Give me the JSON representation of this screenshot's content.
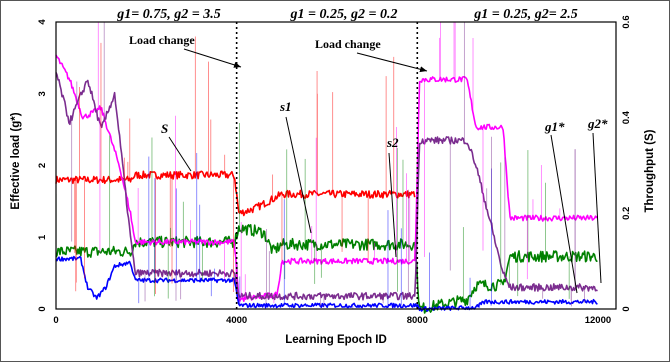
{
  "chart_data": {
    "type": "line",
    "title": "",
    "xlabel": "Learning Epoch ID",
    "ylabel_left": "Effective load (g*)",
    "ylabel_right": "Throughput (S)",
    "xlim": [
      0,
      12400
    ],
    "ylim_left": [
      0,
      4
    ],
    "ylim_right": [
      0,
      0.6
    ],
    "x_ticks": [
      "0",
      "4000",
      "8000",
      "12000"
    ],
    "y_left_ticks": [
      "0",
      "1",
      "2",
      "3",
      "4"
    ],
    "y_right_ticks": [
      "0",
      "0.2",
      "0.4",
      "0.6"
    ],
    "grid": false,
    "load_changes": [
      4000,
      8000
    ],
    "regimes": [
      {
        "label": "g1= 0.75, g2 = 3.5",
        "x": 2000
      },
      {
        "label": "g1 = 0.25, g2 = 0.2",
        "x": 6000
      },
      {
        "label": "g1 = 0.25, g2= 2.5",
        "x": 10150
      }
    ],
    "annotations": [
      {
        "text": "Load change",
        "target_x": 4000
      },
      {
        "text": "Load change",
        "target_x": 8000
      }
    ],
    "series_labels": [
      "S",
      "s1",
      "s2",
      "g1*",
      "g2*"
    ],
    "series": [
      {
        "name": "S",
        "color": "#ff0000",
        "axis": "right",
        "noise": 0.008,
        "points": [
          [
            0,
            0.27
          ],
          [
            1650,
            0.27
          ],
          [
            1750,
            0.28
          ],
          [
            3950,
            0.28
          ],
          [
            4050,
            0.2
          ],
          [
            4400,
            0.21
          ],
          [
            4600,
            0.22
          ],
          [
            5000,
            0.24
          ],
          [
            7950,
            0.24
          ]
        ]
      },
      {
        "name": "s1",
        "color": "#008000",
        "axis": "right",
        "noise": 0.012,
        "points": [
          [
            0,
            0.12
          ],
          [
            1650,
            0.12
          ],
          [
            1750,
            0.14
          ],
          [
            3950,
            0.14
          ],
          [
            4050,
            0.17
          ],
          [
            4600,
            0.16
          ],
          [
            4800,
            0.12
          ],
          [
            5000,
            0.135
          ],
          [
            7950,
            0.135
          ],
          [
            8050,
            0.0
          ],
          [
            9100,
            0.02
          ],
          [
            9300,
            0.05
          ],
          [
            9900,
            0.05
          ],
          [
            10050,
            0.11
          ],
          [
            12000,
            0.11
          ]
        ]
      },
      {
        "name": "s2",
        "color": "#ff00ff",
        "axis": "right",
        "noise": 0.006,
        "points": [
          [
            0,
            0.53
          ],
          [
            300,
            0.48
          ],
          [
            600,
            0.4
          ],
          [
            1000,
            0.42
          ],
          [
            1400,
            0.3
          ],
          [
            1650,
            0.2
          ],
          [
            1750,
            0.14
          ],
          [
            3950,
            0.14
          ],
          [
            4050,
            0.02
          ],
          [
            4900,
            0.03
          ],
          [
            5000,
            0.1
          ],
          [
            7950,
            0.1
          ],
          [
            8050,
            0.48
          ],
          [
            9100,
            0.48
          ],
          [
            9300,
            0.38
          ],
          [
            9900,
            0.38
          ],
          [
            10050,
            0.19
          ],
          [
            12000,
            0.19
          ]
        ]
      },
      {
        "name": "g1*",
        "color": "#0000ff",
        "axis": "left",
        "noise": 0.03,
        "points": [
          [
            0,
            0.7
          ],
          [
            550,
            0.7
          ],
          [
            700,
            0.3
          ],
          [
            900,
            0.15
          ],
          [
            1100,
            0.3
          ],
          [
            1300,
            0.6
          ],
          [
            1650,
            0.65
          ],
          [
            1750,
            0.4
          ],
          [
            3950,
            0.4
          ],
          [
            4050,
            0.05
          ],
          [
            8000,
            0.05
          ],
          [
            8050,
            0.0
          ],
          [
            9300,
            0.02
          ],
          [
            9500,
            0.1
          ],
          [
            12000,
            0.1
          ]
        ]
      },
      {
        "name": "g2*",
        "color": "#7b2d8f",
        "axis": "left",
        "noise": 0.05,
        "points": [
          [
            0,
            3.3
          ],
          [
            300,
            2.6
          ],
          [
            700,
            3.2
          ],
          [
            1000,
            2.5
          ],
          [
            1300,
            3.0
          ],
          [
            1650,
            1.0
          ],
          [
            1750,
            0.5
          ],
          [
            3950,
            0.5
          ],
          [
            4050,
            0.18
          ],
          [
            7950,
            0.18
          ],
          [
            8050,
            2.35
          ],
          [
            9100,
            2.35
          ],
          [
            9300,
            2.0
          ],
          [
            9900,
            0.5
          ],
          [
            10050,
            0.3
          ],
          [
            12000,
            0.3
          ]
        ]
      }
    ]
  }
}
